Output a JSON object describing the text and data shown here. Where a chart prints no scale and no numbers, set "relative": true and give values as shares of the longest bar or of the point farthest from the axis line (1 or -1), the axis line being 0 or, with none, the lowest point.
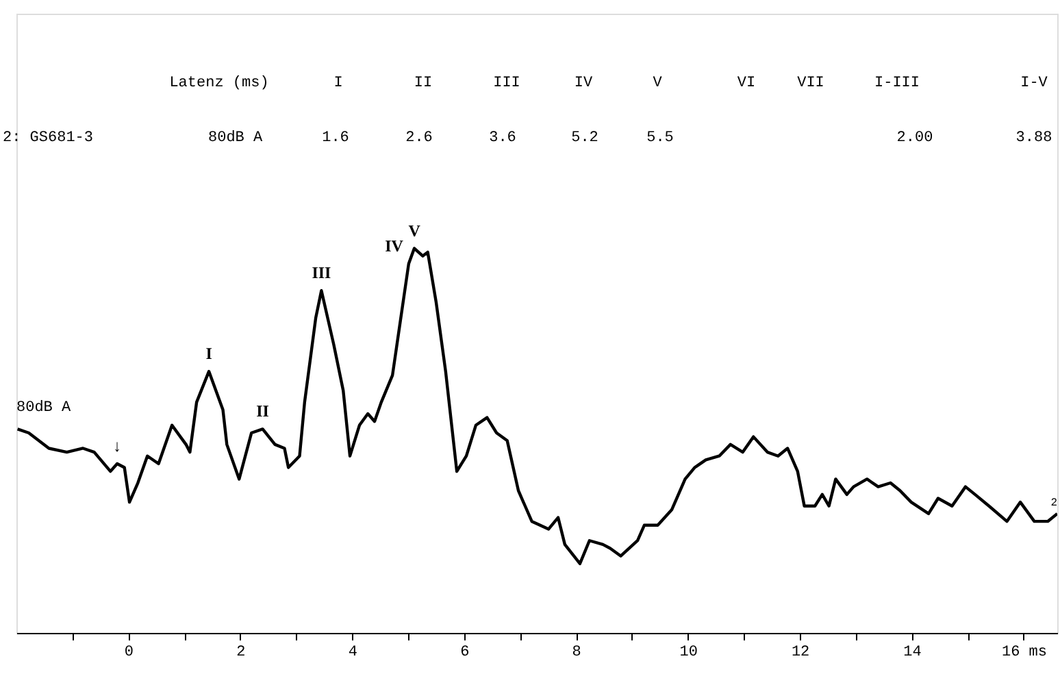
{
  "chart_data": {
    "type": "line",
    "relative": true,
    "line_style": "solid",
    "marker": "none",
    "grid": false,
    "xlim": [
      -2,
      16.6
    ],
    "xticks": [
      {
        "value": -1,
        "label": null
      },
      0,
      {
        "value": 1,
        "label": null
      },
      2,
      {
        "value": 3,
        "label": null
      },
      4,
      {
        "value": 5,
        "label": null
      },
      6,
      {
        "value": 7,
        "label": null
      },
      8,
      {
        "value": 9,
        "label": null
      },
      10,
      {
        "value": 11,
        "label": null
      },
      12,
      {
        "value": 13,
        "label": null
      },
      14,
      {
        "value": 15,
        "label": null
      },
      {
        "value": 16,
        "label": "16 ms"
      }
    ],
    "annotations": [
      "Latenz (ms)",
      "I",
      "II",
      "III",
      "IV",
      "V",
      "VI",
      "VII",
      "I-III",
      "I-V",
      "2: GS681-3",
      "80dB A",
      "1.6",
      "2.6",
      "3.6",
      "5.2",
      "5.5",
      "2.00",
      "3.88",
      "80dB A",
      {
        "text": "↓",
        "x": -0.2,
        "y": 0.44
      },
      {
        "text": "I",
        "x": 1.44,
        "y": 0.68
      },
      {
        "text": "II",
        "x": 2.4,
        "y": 0.53
      },
      {
        "text": "III",
        "x": 3.45,
        "y": 0.89
      },
      {
        "text": "IV",
        "x": 5.01,
        "y": 0.96
      },
      {
        "text": "V",
        "x": 5.11,
        "y": 1.0
      }
    ],
    "series": [
      {
        "name": "2",
        "color": "#000000",
        "x": [
          -1.98,
          -1.78,
          -1.42,
          -1.1,
          -0.81,
          -0.61,
          -0.32,
          -0.2,
          -0.07,
          0.02,
          0.17,
          0.34,
          0.54,
          0.78,
          1.03,
          1.1,
          1.22,
          1.44,
          1.69,
          1.76,
          1.98,
          2.2,
          2.4,
          2.62,
          2.79,
          2.86,
          3.06,
          3.15,
          3.35,
          3.45,
          3.67,
          3.84,
          3.96,
          4.13,
          4.28,
          4.4,
          4.52,
          4.72,
          4.84,
          5.01,
          5.11,
          5.26,
          5.35,
          5.5,
          5.67,
          5.87,
          6.04,
          6.21,
          6.41,
          6.58,
          6.77,
          6.97,
          7.21,
          7.51,
          7.68,
          7.8,
          8.07,
          8.24,
          8.48,
          8.61,
          8.8,
          9.1,
          9.22,
          9.46,
          9.71,
          9.95,
          10.12,
          10.32,
          10.56,
          10.76,
          10.98,
          11.17,
          11.42,
          11.61,
          11.78,
          11.96,
          12.08,
          12.27,
          12.4,
          12.52,
          12.64,
          12.84,
          12.96,
          13.2,
          13.4,
          13.62,
          13.79,
          13.99,
          14.3,
          14.47,
          14.72,
          14.96,
          15.13,
          15.38,
          15.7,
          15.94,
          16.19,
          16.43,
          16.6
        ],
        "values": [
          0.53,
          0.52,
          0.48,
          0.47,
          0.48,
          0.47,
          0.42,
          0.44,
          0.43,
          0.34,
          0.39,
          0.46,
          0.44,
          0.54,
          0.49,
          0.47,
          0.6,
          0.68,
          0.58,
          0.49,
          0.4,
          0.52,
          0.53,
          0.49,
          0.48,
          0.43,
          0.46,
          0.6,
          0.82,
          0.89,
          0.75,
          0.63,
          0.46,
          0.54,
          0.57,
          0.55,
          0.6,
          0.67,
          0.79,
          0.96,
          1.0,
          0.98,
          0.99,
          0.86,
          0.68,
          0.42,
          0.46,
          0.54,
          0.56,
          0.52,
          0.5,
          0.37,
          0.29,
          0.27,
          0.3,
          0.23,
          0.18,
          0.24,
          0.23,
          0.22,
          0.2,
          0.24,
          0.28,
          0.28,
          0.32,
          0.4,
          0.43,
          0.45,
          0.46,
          0.49,
          0.47,
          0.51,
          0.47,
          0.46,
          0.48,
          0.42,
          0.33,
          0.33,
          0.36,
          0.33,
          0.4,
          0.36,
          0.38,
          0.4,
          0.38,
          0.39,
          0.37,
          0.34,
          0.31,
          0.35,
          0.33,
          0.38,
          0.36,
          0.33,
          0.29,
          0.34,
          0.29,
          0.29,
          0.31
        ]
      }
    ]
  }
}
